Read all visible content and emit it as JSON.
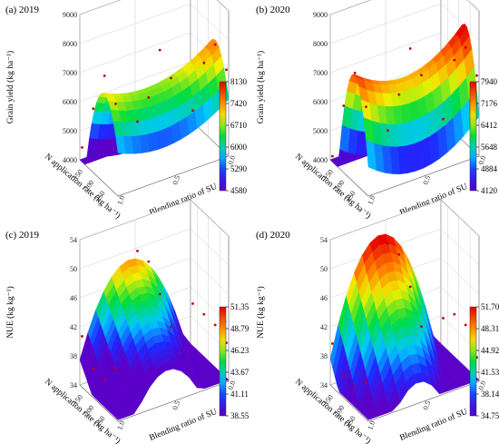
{
  "chart_data": [
    {
      "type": "surface3d",
      "title": "(a) 2019",
      "zlabel": "Grain yield (kg ha⁻¹)",
      "xlabel": "N application rate (kg ha⁻¹)",
      "ylabel": "Blending ratio of SU",
      "z_ticks": [
        "4000",
        "5000",
        "6000",
        "7000",
        "8000",
        "9000"
      ],
      "zlim": [
        4000,
        9000
      ],
      "x_ticks": [
        "150",
        "200",
        "250"
      ],
      "xlim": [
        120,
        290
      ],
      "y_ticks": [
        "0.0",
        "0.5",
        "1.0"
      ],
      "ylim": [
        0,
        1
      ],
      "colorbar_ticks": [
        "8130",
        "7420",
        "6710",
        "6000",
        "5290",
        "4580"
      ],
      "colorbar_range": [
        4580,
        8130
      ],
      "surface": {
        "base": 6700,
        "a": 2300,
        "x0": 230,
        "xs": 72,
        "b": 600,
        "y0": 0.4
      },
      "points": [
        [
          130,
          0.0,
          4500
        ],
        [
          130,
          0.5,
          4700
        ],
        [
          130,
          1.0,
          4400
        ],
        [
          180,
          0.0,
          6200
        ],
        [
          180,
          0.5,
          5900
        ],
        [
          180,
          1.0,
          6400
        ],
        [
          230,
          0.0,
          7700
        ],
        [
          230,
          0.5,
          7900
        ],
        [
          230,
          1.0,
          7400
        ],
        [
          280,
          0.0,
          7100
        ],
        [
          280,
          0.5,
          7300
        ],
        [
          280,
          1.0,
          6900
        ]
      ]
    },
    {
      "type": "surface3d",
      "title": "(b) 2020",
      "zlabel": "Grain yield (kg ha⁻¹)",
      "xlabel": "N application rate (kg ha⁻¹)",
      "ylabel": "Blending ratio of SU",
      "z_ticks": [
        "4000",
        "5000",
        "6000",
        "7000",
        "8000",
        "9000"
      ],
      "zlim": [
        4000,
        9000
      ],
      "x_ticks": [
        "150",
        "200",
        "250"
      ],
      "xlim": [
        120,
        290
      ],
      "y_ticks": [
        "0.0",
        "0.5",
        "1.0"
      ],
      "ylim": [
        0,
        1
      ],
      "colorbar_ticks": [
        "7940",
        "7176",
        "6412",
        "5648",
        "4884",
        "4120"
      ],
      "colorbar_range": [
        4120,
        7940
      ],
      "surface": {
        "base": 7000,
        "a": 3000,
        "x0": 228,
        "xs": 65,
        "b": 900,
        "y0": 0.45
      },
      "points": [
        [
          130,
          0.0,
          4200
        ],
        [
          130,
          0.5,
          4400
        ],
        [
          130,
          1.0,
          4100
        ],
        [
          180,
          0.0,
          6300
        ],
        [
          180,
          0.5,
          6000
        ],
        [
          180,
          1.0,
          6500
        ],
        [
          230,
          0.0,
          7800
        ],
        [
          230,
          0.5,
          7950
        ],
        [
          230,
          1.0,
          7300
        ],
        [
          280,
          0.0,
          7000
        ],
        [
          280,
          0.5,
          7400
        ],
        [
          280,
          1.0,
          6700
        ]
      ]
    },
    {
      "type": "surface3d",
      "title": "(c) 2019",
      "zlabel": "NUE (kg kg⁻¹)",
      "xlabel": "N application rate (kg ha⁻¹)",
      "ylabel": "Blending ratio of SU",
      "z_ticks": [
        "34",
        "38",
        "42",
        "46",
        "50",
        "54"
      ],
      "zlim": [
        34,
        54
      ],
      "x_ticks": [
        "150",
        "200",
        "250"
      ],
      "xlim": [
        120,
        290
      ],
      "y_ticks": [
        "0.0",
        "0.5",
        "1.0"
      ],
      "ylim": [
        0,
        1
      ],
      "colorbar_ticks": [
        "51.35",
        "48.79",
        "46.23",
        "43.67",
        "41.11",
        "38.55"
      ],
      "colorbar_range": [
        38.55,
        51.35
      ],
      "surface": {
        "base": 44,
        "a": 0,
        "x0": 200,
        "xs": 100,
        "b": -14,
        "y0": 0.45,
        "c": -6,
        "xc": 0
      },
      "points": [
        [
          130,
          0.0,
          41
        ],
        [
          130,
          0.5,
          50
        ],
        [
          130,
          1.0,
          40
        ],
        [
          180,
          0.0,
          38
        ],
        [
          180,
          0.5,
          50
        ],
        [
          180,
          1.0,
          40
        ],
        [
          230,
          0.0,
          38
        ],
        [
          230,
          0.5,
          47
        ],
        [
          230,
          1.0,
          40
        ],
        [
          280,
          0.0,
          41
        ],
        [
          280,
          0.5,
          44
        ],
        [
          280,
          1.0,
          39
        ]
      ]
    },
    {
      "type": "surface3d",
      "title": "(d) 2020",
      "zlabel": "NUE (kg kg⁻¹)",
      "xlabel": "N application rate (kg ha⁻¹)",
      "ylabel": "Blending ratio of SU",
      "z_ticks": [
        "34",
        "38",
        "42",
        "46",
        "50",
        "54"
      ],
      "zlim": [
        34,
        54
      ],
      "x_ticks": [
        "150",
        "200",
        "250"
      ],
      "xlim": [
        120,
        290
      ],
      "y_ticks": [
        "0.0",
        "0.5",
        "1.0"
      ],
      "ylim": [
        0,
        1
      ],
      "colorbar_ticks": [
        "51.70",
        "48.31",
        "44.92",
        "41.53",
        "38.14",
        "34.75"
      ],
      "colorbar_range": [
        34.75,
        51.7
      ],
      "surface": {
        "base": 45,
        "a": 0,
        "x0": 200,
        "xs": 100,
        "b": -18,
        "y0": 0.45,
        "c": -9,
        "xc": 0
      },
      "points": [
        [
          130,
          0.0,
          40
        ],
        [
          130,
          0.5,
          51
        ],
        [
          130,
          1.0,
          38
        ],
        [
          180,
          0.0,
          37
        ],
        [
          180,
          0.5,
          51
        ],
        [
          180,
          1.0,
          40
        ],
        [
          230,
          0.0,
          37
        ],
        [
          230,
          0.5,
          48
        ],
        [
          230,
          1.0,
          40
        ],
        [
          280,
          0.0,
          39
        ],
        [
          280,
          0.5,
          44
        ],
        [
          280,
          1.0,
          37
        ]
      ]
    }
  ]
}
